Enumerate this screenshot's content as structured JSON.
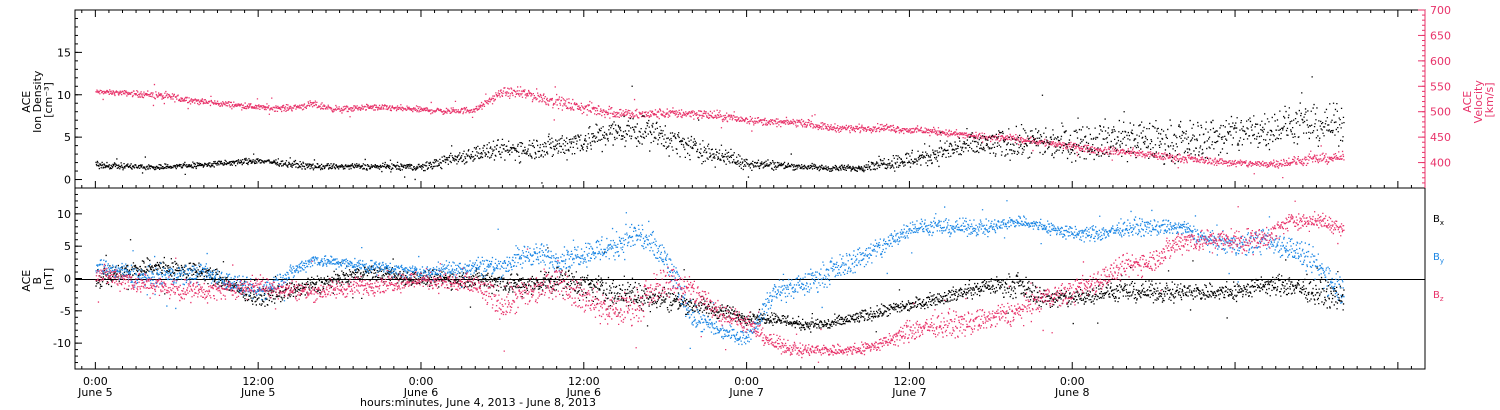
{
  "colors": {
    "black": "#000000",
    "pink": "#e8336a",
    "blue": "#1e88e5"
  },
  "chart_data": [
    {
      "type": "scatter",
      "x_unit": "hours since 2013-06-05 00:00 UT",
      "xlim": [
        -1.5,
        98
      ],
      "ylim_left": [
        -1,
        20
      ],
      "ylim_right": [
        350,
        700
      ],
      "ylabel_left": [
        "ACE",
        "Ion Density",
        "[cm⁻³]"
      ],
      "ylabel_right": [
        "ACE",
        "Velocity",
        "[km/s]"
      ],
      "yticks_left": [
        0,
        5,
        10,
        15
      ],
      "yticks_right": [
        400,
        450,
        500,
        550,
        600,
        650,
        700
      ],
      "series": [
        {
          "name": "Ion Density",
          "axis": "left",
          "color": "#000000",
          "x": [
            0,
            4,
            8,
            12,
            16,
            20,
            24,
            28,
            30,
            34,
            38,
            40,
            44,
            48,
            52,
            54,
            56,
            58,
            60,
            64,
            68,
            72,
            76,
            80,
            84,
            88,
            92
          ],
          "y": [
            1.8,
            1.5,
            1.8,
            2.3,
            1.6,
            1.6,
            1.5,
            3.2,
            3.5,
            4.0,
            5.5,
            6.0,
            3.8,
            2.0,
            1.6,
            1.4,
            1.4,
            2.0,
            2.4,
            4.0,
            4.3,
            4.6,
            4.9,
            4.5,
            5.5,
            6.5,
            6.5
          ],
          "noise": [
            0.3,
            0.3,
            0.3,
            0.3,
            0.3,
            0.3,
            0.4,
            0.8,
            1.0,
            1.2,
            1.5,
            1.5,
            1.2,
            0.6,
            0.3,
            0.3,
            0.3,
            0.6,
            1.0,
            1.2,
            1.5,
            1.8,
            2.0,
            1.8,
            2.0,
            1.8,
            1.8
          ]
        },
        {
          "name": "Velocity",
          "axis": "right",
          "color": "#e8336a",
          "x": [
            0,
            2,
            4,
            6,
            8,
            10,
            12,
            14,
            16,
            18,
            20,
            22,
            24,
            26,
            28,
            30,
            32,
            34,
            36,
            38,
            40,
            42,
            44,
            46,
            48,
            50,
            52,
            54,
            56,
            58,
            60,
            62,
            64,
            66,
            68,
            70,
            72,
            74,
            76,
            78,
            80,
            82,
            84,
            86,
            88,
            90,
            92
          ],
          "y": [
            540,
            538,
            535,
            528,
            520,
            515,
            510,
            508,
            515,
            505,
            510,
            508,
            505,
            502,
            505,
            540,
            535,
            520,
            508,
            500,
            495,
            498,
            498,
            492,
            485,
            480,
            480,
            470,
            468,
            470,
            465,
            462,
            455,
            450,
            448,
            440,
            432,
            425,
            422,
            415,
            410,
            405,
            400,
            398,
            402,
            408,
            412
          ],
          "noise": [
            4,
            4,
            6,
            6,
            5,
            5,
            5,
            5,
            6,
            5,
            5,
            5,
            5,
            5,
            5,
            7,
            10,
            10,
            10,
            10,
            8,
            8,
            8,
            8,
            6,
            6,
            6,
            6,
            6,
            6,
            6,
            6,
            6,
            6,
            6,
            6,
            6,
            6,
            6,
            6,
            6,
            6,
            6,
            6,
            8,
            8,
            8
          ]
        }
      ]
    },
    {
      "type": "scatter",
      "x_unit": "hours since 2013-06-05 00:00 UT",
      "xlim": [
        -1.5,
        98
      ],
      "ylim": [
        -14,
        14
      ],
      "ylabel": [
        "ACE",
        "B",
        "[nT]"
      ],
      "yticks": [
        -10,
        -5,
        0,
        5,
        10
      ],
      "legend": [
        "Bx",
        "By",
        "Bz"
      ],
      "legend_placement": "right",
      "series": [
        {
          "name": "Bx",
          "color": "#000000",
          "x": [
            0,
            4,
            8,
            12,
            16,
            20,
            24,
            28,
            32,
            34,
            38,
            42,
            44,
            48,
            50,
            52,
            54,
            56,
            58,
            60,
            62,
            64,
            66,
            68,
            70,
            72,
            74,
            76,
            78,
            80,
            82,
            84,
            86,
            88,
            90,
            92
          ],
          "y": [
            0,
            2,
            1,
            -3,
            -1,
            1,
            0,
            0,
            -1,
            0,
            -2,
            -3,
            -4,
            -6,
            -6,
            -7,
            -7,
            -6,
            -5,
            -4,
            -3,
            -2,
            -1,
            -1,
            -3,
            -3,
            -2,
            -2,
            -2,
            -2,
            -2,
            -2,
            -1,
            -1,
            -2,
            -3
          ],
          "noise": [
            1.2,
            1.2,
            1.2,
            1.0,
            1.2,
            1.0,
            1.0,
            1.2,
            1.5,
            1.5,
            2.0,
            1.5,
            1.2,
            0.8,
            0.8,
            0.8,
            0.8,
            0.8,
            0.8,
            0.8,
            0.8,
            1.0,
            1.0,
            1.5,
            1.2,
            1.2,
            1.2,
            1.2,
            1.2,
            1.2,
            1.2,
            1.2,
            1.2,
            1.5,
            1.5,
            1.5
          ]
        },
        {
          "name": "By",
          "color": "#1e88e5",
          "x": [
            0,
            4,
            8,
            12,
            16,
            20,
            24,
            28,
            30,
            32,
            34,
            36,
            38,
            40,
            42,
            44,
            46,
            48,
            50,
            52,
            54,
            56,
            58,
            60,
            62,
            64,
            66,
            68,
            70,
            72,
            74,
            76,
            78,
            80,
            82,
            84,
            86,
            88,
            90,
            92
          ],
          "y": [
            2,
            0,
            1,
            -2,
            3,
            2,
            1,
            2,
            2,
            4,
            3,
            4,
            5,
            7,
            3,
            -6,
            -8,
            -9,
            -2,
            -1,
            1,
            3,
            5,
            8,
            8,
            8,
            8,
            9,
            8,
            7,
            7,
            8,
            8,
            8,
            6,
            5,
            6,
            5,
            2,
            -2
          ],
          "noise": [
            1.0,
            1.5,
            1.2,
            1.2,
            0.8,
            0.8,
            0.8,
            1.2,
            1.5,
            1.5,
            1.5,
            1.5,
            2.0,
            2.0,
            2.0,
            1.5,
            1.0,
            1.0,
            1.5,
            1.5,
            1.5,
            1.5,
            1.5,
            1.0,
            1.0,
            1.0,
            1.0,
            0.8,
            0.8,
            1.0,
            1.0,
            1.0,
            1.0,
            1.0,
            1.0,
            1.5,
            1.5,
            1.5,
            2.0,
            2.0
          ]
        },
        {
          "name": "Bz",
          "color": "#e8336a",
          "x": [
            0,
            4,
            8,
            12,
            16,
            20,
            24,
            28,
            30,
            32,
            34,
            36,
            38,
            40,
            42,
            44,
            46,
            48,
            50,
            52,
            54,
            56,
            58,
            60,
            62,
            64,
            66,
            68,
            70,
            72,
            74,
            76,
            78,
            80,
            82,
            84,
            86,
            88,
            90,
            92
          ],
          "y": [
            1,
            -1,
            -2,
            -1,
            -2,
            -1,
            0,
            -1,
            -4,
            -2,
            0,
            -3,
            -5,
            -4,
            0,
            -2,
            -5,
            -7,
            -10,
            -11,
            -11,
            -11,
            -10,
            -8,
            -7,
            -7,
            -6,
            -5,
            -3,
            -2,
            0,
            2,
            3,
            6,
            6,
            6,
            6,
            9,
            9,
            8
          ],
          "noise": [
            1.2,
            1.5,
            1.2,
            1.2,
            1.2,
            1.2,
            1.2,
            1.5,
            2.0,
            2.0,
            2.0,
            2.0,
            2.0,
            2.0,
            2.0,
            2.0,
            1.5,
            1.0,
            1.0,
            0.8,
            0.8,
            0.8,
            0.8,
            1.5,
            1.5,
            1.5,
            1.5,
            1.5,
            1.5,
            1.5,
            1.5,
            1.5,
            1.5,
            1.5,
            1.5,
            1.5,
            1.5,
            1.0,
            1.0,
            1.0
          ]
        }
      ]
    }
  ],
  "x_ticks": [
    {
      "x": 0,
      "time": "0:00",
      "date": "June 5"
    },
    {
      "x": 12,
      "time": "12:00",
      "date": "June 5"
    },
    {
      "x": 24,
      "time": "0:00",
      "date": "June 6"
    },
    {
      "x": 36,
      "time": "12:00",
      "date": "June 6"
    },
    {
      "x": 48,
      "time": "0:00",
      "date": "June 7"
    },
    {
      "x": 60,
      "time": "12:00",
      "date": "June 7"
    },
    {
      "x": 72,
      "time": "0:00",
      "date": "June 8"
    }
  ],
  "xlabel": "hours:minutes, June  4, 2013 - June  8, 2013",
  "legend_labels": {
    "bx_base": "B",
    "bx_sub": "x",
    "by_base": "B",
    "by_sub": "y",
    "bz_base": "B",
    "bz_sub": "z"
  },
  "top_left_axis_title": {
    "line1": "ACE",
    "line2": "Ion Density",
    "line3": "[cm⁻³]"
  },
  "top_right_axis_title": {
    "line1": "ACE",
    "line2": "Velocity",
    "line3": "[km/s]"
  },
  "bottom_axis_title": {
    "line1": "ACE",
    "line2": "B",
    "line3": "[nT]"
  }
}
